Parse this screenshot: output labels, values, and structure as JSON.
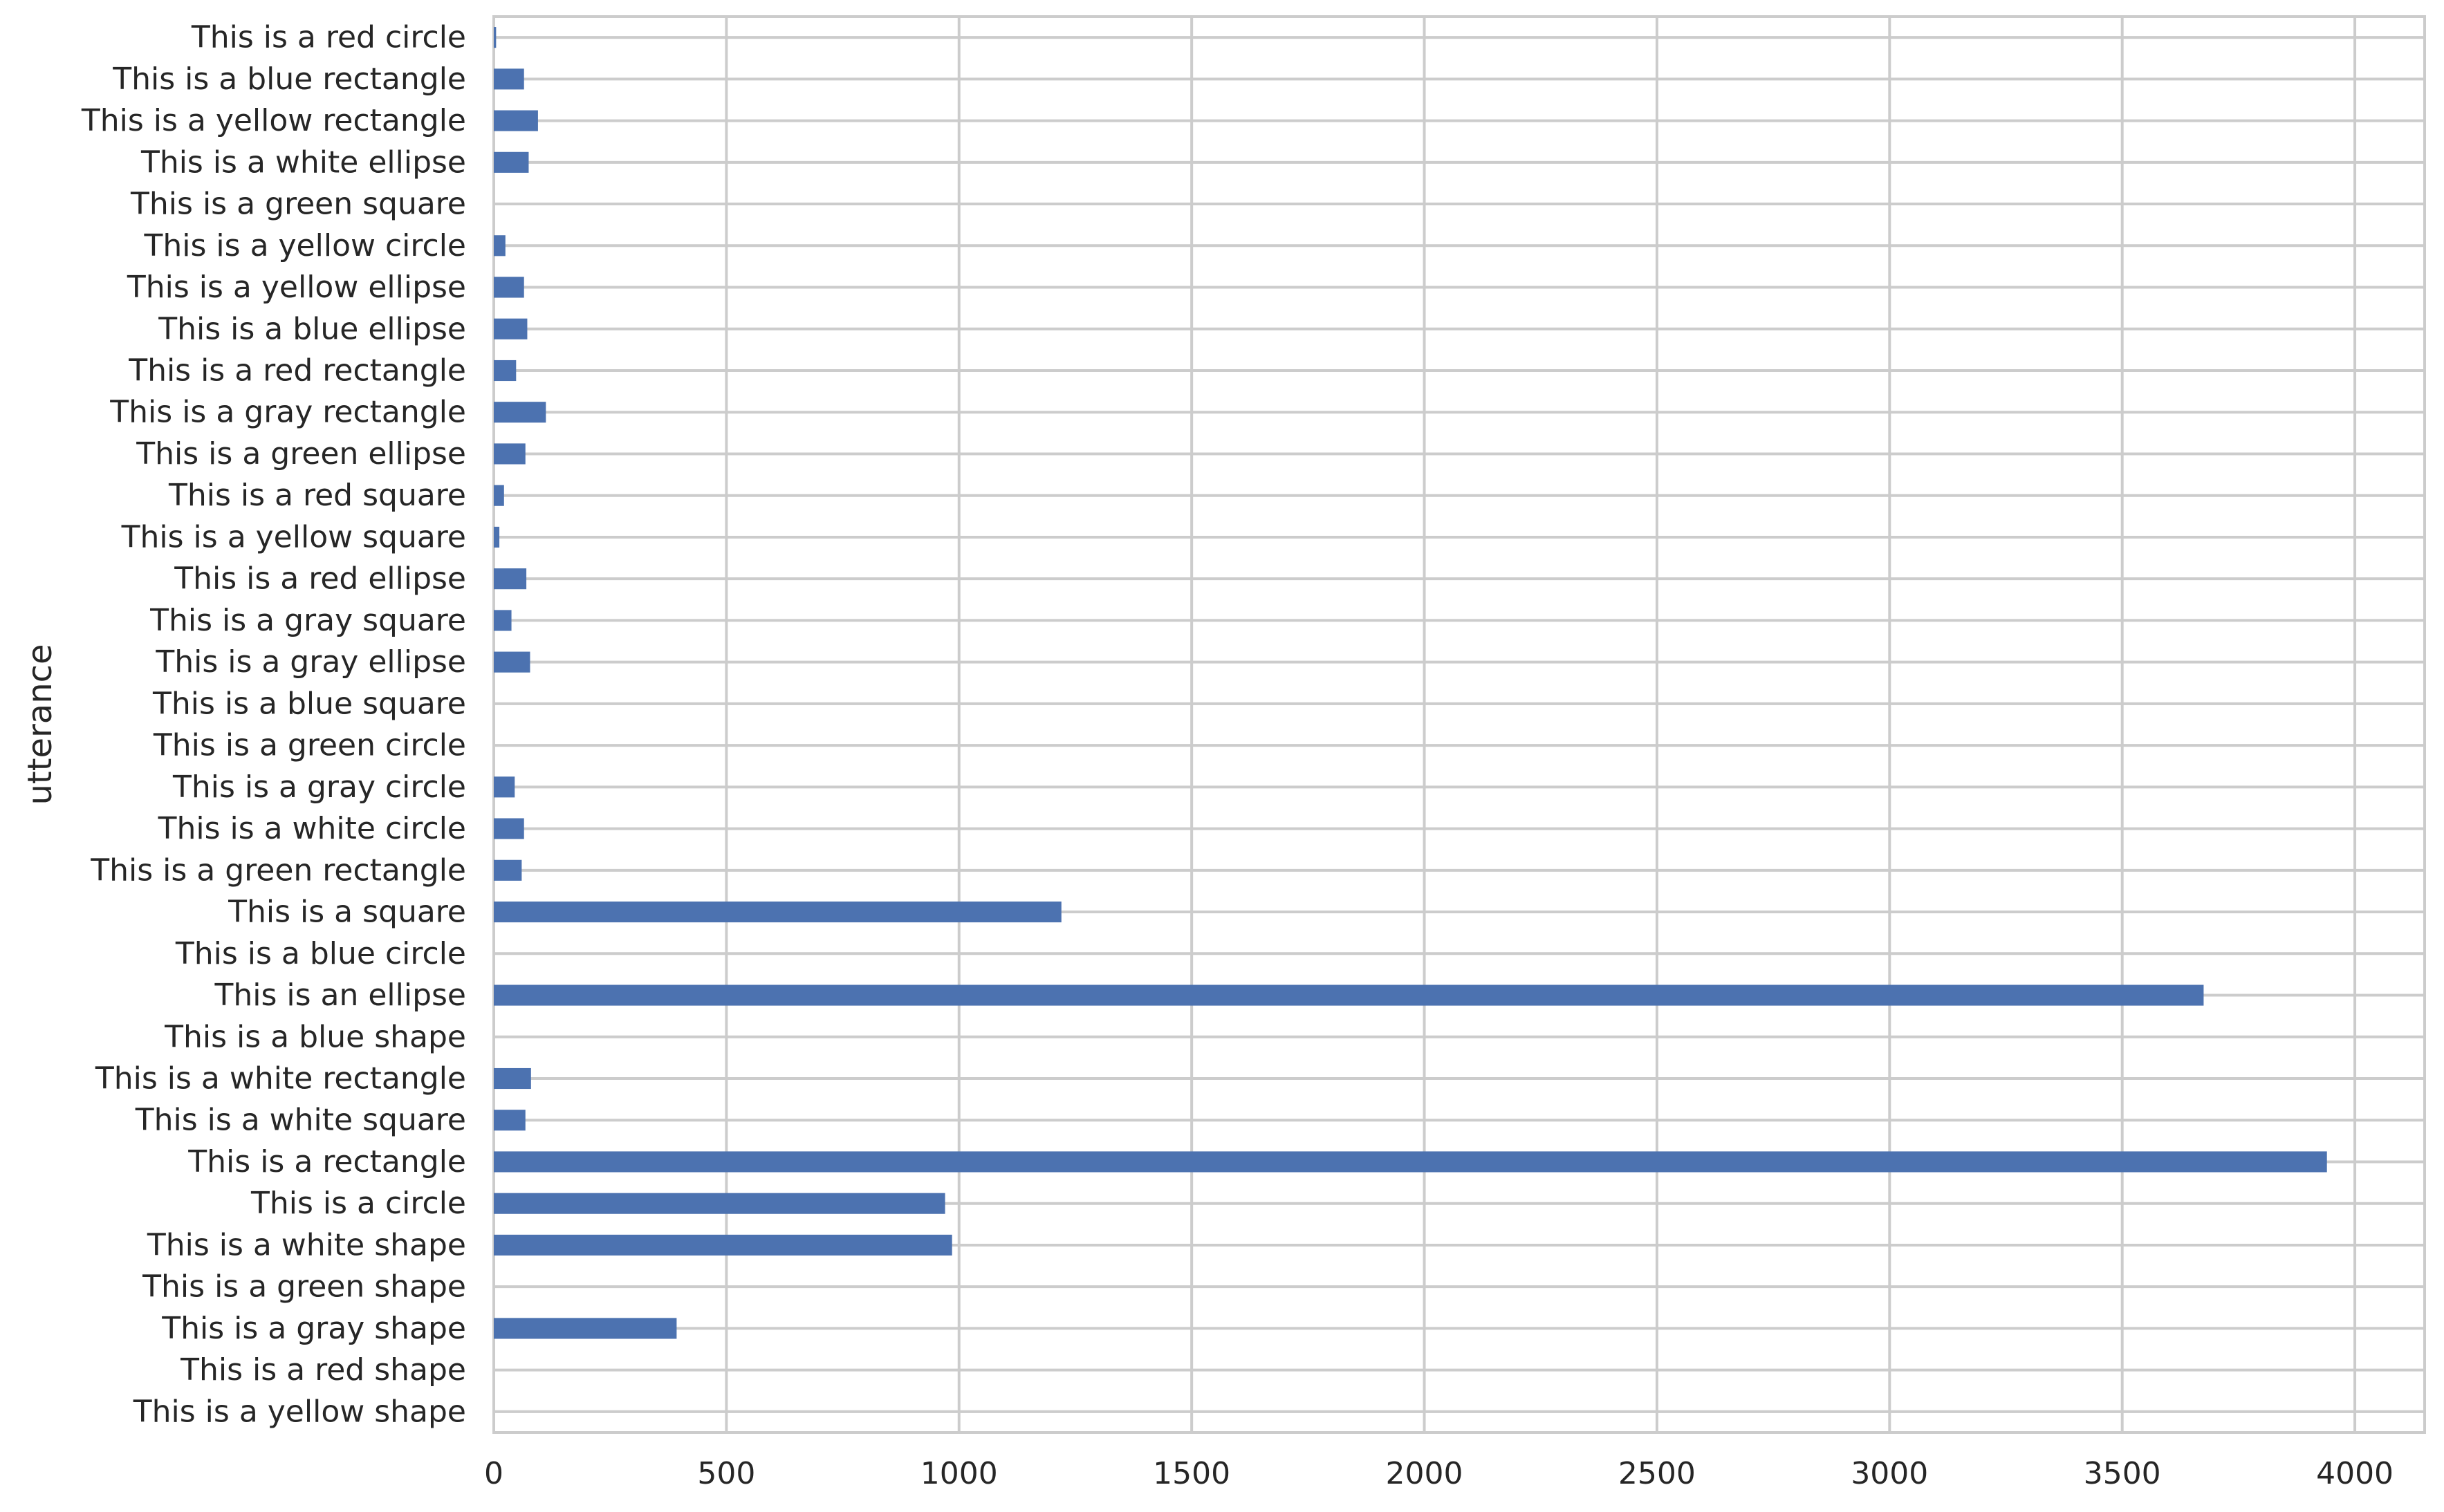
{
  "chart_data": {
    "type": "bar",
    "orientation": "horizontal",
    "ylabel": "utterance",
    "xlabel": "",
    "xlim": [
      0,
      4150
    ],
    "xticks": [
      0,
      500,
      1000,
      1500,
      2000,
      2500,
      3000,
      3500,
      4000
    ],
    "grid": true,
    "bar_color": "#4c72b0",
    "categories": [
      "This is a red circle",
      "This is a blue rectangle",
      "This is a yellow rectangle",
      "This is a white ellipse",
      "This is a green square",
      "This is a yellow circle",
      "This is a yellow ellipse",
      "This is a blue ellipse",
      "This is a red rectangle",
      "This is a gray rectangle",
      "This is a green ellipse",
      "This is a red square",
      "This is a yellow square",
      "This is a red ellipse",
      "This is a gray square",
      "This is a gray ellipse",
      "This is a blue square",
      "This is a green circle",
      "This is a gray circle",
      "This is a white circle",
      "This is a green rectangle",
      "This is a square",
      "This is a blue circle",
      "This is an ellipse",
      "This is a blue shape",
      "This is a white rectangle",
      "This is a white square",
      "This is a rectangle",
      "This is a circle",
      "This is a white shape",
      "This is a green shape",
      "This is a gray shape",
      "This is a red shape",
      "This is a yellow shape"
    ],
    "values": [
      5,
      65,
      95,
      75,
      0,
      25,
      65,
      72,
      48,
      112,
      68,
      22,
      12,
      70,
      38,
      78,
      0,
      0,
      45,
      65,
      60,
      1220,
      0,
      3675,
      0,
      80,
      68,
      3940,
      970,
      985,
      0,
      393,
      0,
      0
    ]
  }
}
